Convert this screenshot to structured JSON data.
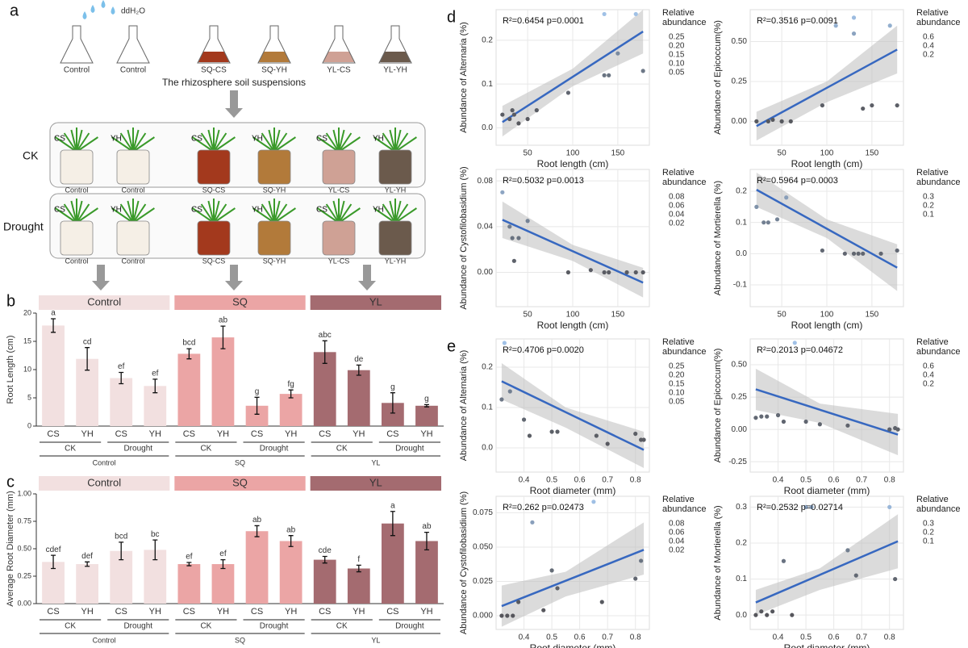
{
  "diagram": {
    "label": "a",
    "water": "ddH₂O",
    "suspension_caption": "The rhizosphere soil suspensions",
    "flasks": [
      {
        "label": "Control",
        "color": "#ffffff"
      },
      {
        "label": "Control",
        "color": "#ffffff"
      },
      {
        "label": "SQ-CS",
        "color": "#a3391d"
      },
      {
        "label": "SQ-YH",
        "color": "#b27a3a"
      },
      {
        "label": "YL-CS",
        "color": "#cfa195"
      },
      {
        "label": "YL-YH",
        "color": "#6b5a4c"
      }
    ],
    "rows": [
      "CK",
      "Drought"
    ],
    "pots": [
      {
        "variety": "CS",
        "label": "Control",
        "color": "#f5efe6"
      },
      {
        "variety": "YH",
        "label": "Control",
        "color": "#f5efe6"
      },
      {
        "variety": "CS",
        "label": "SQ-CS",
        "color": "#a3391d"
      },
      {
        "variety": "YH",
        "label": "SQ-YH",
        "color": "#b27a3a"
      },
      {
        "variety": "CS",
        "label": "YL-CS",
        "color": "#cfa195"
      },
      {
        "variety": "YH",
        "label": "YL-YH",
        "color": "#6b5a4c"
      }
    ]
  },
  "chart_data": [
    {
      "type": "bar",
      "panel": "b",
      "y_label": "Root Length (cm)",
      "ylim": [
        0,
        20
      ],
      "yticks": [
        0,
        5,
        10,
        15,
        20
      ],
      "groups": [
        {
          "name": "Control",
          "color": "#f2e0e0",
          "subgroups": [
            "CK",
            "Drought"
          ]
        },
        {
          "name": "SQ",
          "color": "#eba5a5",
          "subgroups": [
            "CK",
            "Drought"
          ]
        },
        {
          "name": "YL",
          "color": "#a46b70",
          "subgroups": [
            "CK",
            "Drought"
          ]
        }
      ],
      "categories": [
        "CS",
        "YH",
        "CS",
        "YH",
        "CS",
        "YH",
        "CS",
        "YH",
        "CS",
        "YH",
        "CS",
        "YH"
      ],
      "values": [
        17.8,
        11.9,
        8.5,
        7.1,
        12.8,
        15.7,
        3.6,
        5.7,
        13.1,
        9.9,
        4.1,
        3.6
      ],
      "errors": [
        1.2,
        2.0,
        1.0,
        1.2,
        0.9,
        2.0,
        1.5,
        0.7,
        2.0,
        0.9,
        1.8,
        0.2
      ],
      "letters": [
        "a",
        "cd",
        "ef",
        "ef",
        "bcd",
        "ab",
        "g",
        "fg",
        "abc",
        "de",
        "g",
        "g"
      ]
    },
    {
      "type": "bar",
      "panel": "c",
      "y_label": "Average Root Diameter (mm)",
      "ylim": [
        0,
        1.0
      ],
      "yticks": [
        {
          "value": 0,
          "label": "0.00"
        },
        0.25,
        {
          "value": 0.5,
          "label": "0.50"
        },
        0.75,
        {
          "value": 1.0,
          "label": "1.00"
        }
      ],
      "groups": [
        {
          "name": "Control",
          "color": "#f2e0e0",
          "subgroups": [
            "CK",
            "Drought"
          ]
        },
        {
          "name": "SQ",
          "color": "#eba5a5",
          "subgroups": [
            "CK",
            "Drought"
          ]
        },
        {
          "name": "YL",
          "color": "#a46b70",
          "subgroups": [
            "CK",
            "Drought"
          ]
        }
      ],
      "categories": [
        "CS",
        "YH",
        "CS",
        "YH",
        "CS",
        "YH",
        "CS",
        "YH",
        "CS",
        "YH",
        "CS",
        "YH"
      ],
      "values": [
        0.38,
        0.36,
        0.48,
        0.49,
        0.36,
        0.36,
        0.66,
        0.57,
        0.4,
        0.32,
        0.73,
        0.57
      ],
      "errors": [
        0.06,
        0.02,
        0.08,
        0.09,
        0.015,
        0.04,
        0.05,
        0.05,
        0.03,
        0.03,
        0.11,
        0.08
      ],
      "letters": [
        "cdef",
        "def",
        "bcd",
        "bc",
        "ef",
        "ef",
        "ab",
        "ab",
        "cde",
        "f",
        "a",
        "ab"
      ]
    },
    {
      "type": "scatter",
      "panel": "d",
      "annotation": "R²=0.6454 p=0.0001",
      "x_label": "Root length (cm)",
      "y_label": "Abundance of Alternaria (%)",
      "xlim": [
        15,
        185
      ],
      "xticks": [
        50,
        100,
        150
      ],
      "ylim": [
        -0.04,
        0.27
      ],
      "yticks": [
        {
          "value": 0,
          "label": "0.0"
        },
        0.1,
        0.2
      ],
      "x": [
        22,
        30,
        33,
        35,
        40,
        50,
        60,
        95,
        135,
        140,
        150,
        135,
        170,
        178
      ],
      "y": [
        0.03,
        0.02,
        0.04,
        0.03,
        0.01,
        0.02,
        0.04,
        0.08,
        0.12,
        0.12,
        0.17,
        0.26,
        0.26,
        0.13
      ],
      "fit": {
        "x": [
          22,
          178
        ],
        "y": [
          0.013,
          0.22
        ]
      },
      "band": {
        "x": [
          22,
          100,
          178
        ],
        "lower": [
          -0.02,
          0.095,
          0.17
        ],
        "upper": [
          0.05,
          0.135,
          0.27
        ]
      },
      "legend": {
        "title": "Relative abundance",
        "entries": [
          "0.25",
          "0.20",
          "0.15",
          "0.10",
          "0.05"
        ]
      }
    },
    {
      "type": "scatter",
      "annotation": "R²=0.3516 p=0.0091",
      "x_label": "Root length (cm)",
      "y_label": "Abundance of Epicoccum(%)",
      "xlim": [
        15,
        185
      ],
      "xticks": [
        50,
        100,
        150
      ],
      "ylim": [
        -0.15,
        0.7
      ],
      "yticks": [
        {
          "value": 0,
          "label": "0.00"
        },
        0.25,
        {
          "value": 0.5,
          "label": "0.50"
        }
      ],
      "x": [
        22,
        35,
        40,
        50,
        60,
        95,
        110,
        130,
        140,
        150,
        170,
        178,
        130
      ],
      "y": [
        0,
        0,
        0.01,
        0,
        0,
        0.1,
        0.6,
        0.65,
        0.08,
        0.1,
        0.6,
        0.1,
        0.55
      ],
      "fit": {
        "x": [
          22,
          178
        ],
        "y": [
          -0.03,
          0.45
        ]
      },
      "band": {
        "x": [
          22,
          100,
          178
        ],
        "lower": [
          -0.12,
          0.12,
          0.3
        ],
        "upper": [
          0.06,
          0.25,
          0.6
        ]
      },
      "legend": {
        "title": "Relative abundance",
        "entries": [
          "0.6",
          "0.4",
          "0.2"
        ]
      }
    },
    {
      "type": "scatter",
      "annotation": "R²=0.5032 p=0.0013",
      "x_label": "Root length (cm)",
      "y_label": "Abundance of Cystofilobasidium (%)",
      "xlim": [
        15,
        185
      ],
      "xticks": [
        50,
        100,
        150
      ],
      "ylim": [
        -0.03,
        0.09
      ],
      "yticks": [
        {
          "value": 0,
          "label": "0.00"
        },
        0.04,
        0.08
      ],
      "x": [
        22,
        30,
        33,
        35,
        40,
        50,
        95,
        120,
        135,
        140,
        160,
        170,
        178
      ],
      "y": [
        0.07,
        0.04,
        0.03,
        0.01,
        0.03,
        0.045,
        0.0,
        0.002,
        0.0,
        0.0,
        0.0,
        0.0,
        0.0
      ],
      "fit": {
        "x": [
          22,
          178
        ],
        "y": [
          0.046,
          -0.009
        ]
      },
      "band": {
        "x": [
          22,
          100,
          178
        ],
        "lower": [
          0.03,
          0.01,
          -0.022
        ],
        "upper": [
          0.062,
          0.024,
          0.004
        ]
      },
      "legend": {
        "title": "Relative abundance",
        "entries": [
          "0.08",
          "0.06",
          "0.04",
          "0.02"
        ]
      }
    },
    {
      "type": "scatter",
      "annotation": "R²=0.5964 p=0.0003",
      "x_label": "Root length (cm)",
      "y_label": "Abundance of Mortierella (%)",
      "xlim": [
        15,
        185
      ],
      "xticks": [
        50,
        100,
        150
      ],
      "ylim": [
        -0.17,
        0.27
      ],
      "yticks": [
        -0.1,
        {
          "value": 0,
          "label": "0.0"
        },
        0.1,
        0.2
      ],
      "x": [
        22,
        30,
        35,
        45,
        55,
        95,
        120,
        130,
        135,
        140,
        160,
        178
      ],
      "y": [
        0.15,
        0.1,
        0.1,
        0.11,
        0.18,
        0.01,
        0.0,
        0.0,
        0.0,
        0.0,
        0.0,
        0.01
      ],
      "fit": {
        "x": [
          22,
          178
        ],
        "y": [
          0.205,
          -0.045
        ]
      },
      "band": {
        "x": [
          22,
          100,
          178
        ],
        "lower": [
          0.15,
          0.05,
          -0.12
        ],
        "upper": [
          0.26,
          0.11,
          0.03
        ]
      },
      "legend": {
        "title": "Relative abundance",
        "entries": [
          "0.3",
          "0.2",
          "0.1"
        ]
      }
    },
    {
      "type": "scatter",
      "panel": "e",
      "annotation": "R²=0.4706 p=0.0020",
      "x_label": "Root diameter (mm)",
      "y_label": "Abundance of Alternaria (%)",
      "xlim": [
        0.3,
        0.85
      ],
      "xticks": [
        0.4,
        0.5,
        0.6,
        0.7,
        0.8
      ],
      "ylim": [
        -0.06,
        0.27
      ],
      "yticks": [
        {
          "value": 0,
          "label": "0.0"
        },
        0.1,
        0.2
      ],
      "x": [
        0.32,
        0.33,
        0.35,
        0.4,
        0.42,
        0.5,
        0.52,
        0.66,
        0.7,
        0.8,
        0.82,
        0.83
      ],
      "y": [
        0.12,
        0.26,
        0.14,
        0.07,
        0.03,
        0.04,
        0.04,
        0.03,
        0.01,
        0.035,
        0.02,
        0.02
      ],
      "fit": {
        "x": [
          0.32,
          0.83
        ],
        "y": [
          0.165,
          -0.005
        ]
      },
      "band": {
        "x": [
          0.32,
          0.55,
          0.83
        ],
        "lower": [
          0.12,
          0.05,
          -0.05
        ],
        "upper": [
          0.21,
          0.1,
          0.04
        ]
      },
      "legend": {
        "title": "Relative abundance",
        "entries": [
          "0.25",
          "0.20",
          "0.15",
          "0.10",
          "0.05"
        ]
      }
    },
    {
      "type": "scatter",
      "annotation": "R²=0.2013 p=0.04672",
      "x_label": "Root diameter (mm)",
      "y_label": "Abundance of Epicoccum(%)",
      "xlim": [
        0.3,
        0.85
      ],
      "xticks": [
        0.4,
        0.5,
        0.6,
        0.7,
        0.8
      ],
      "ylim": [
        -0.33,
        0.7
      ],
      "yticks": [
        -0.25,
        {
          "value": 0,
          "label": "0.00"
        },
        0.25,
        {
          "value": 0.5,
          "label": "0.50"
        }
      ],
      "x": [
        0.32,
        0.34,
        0.36,
        0.4,
        0.42,
        0.46,
        0.5,
        0.55,
        0.65,
        0.8,
        0.82,
        0.83
      ],
      "y": [
        0.09,
        0.1,
        0.1,
        0.11,
        0.06,
        0.67,
        0.06,
        0.04,
        0.03,
        0.0,
        0.01,
        0.0
      ],
      "fit": {
        "x": [
          0.32,
          0.83
        ],
        "y": [
          0.31,
          -0.04
        ]
      },
      "band": {
        "x": [
          0.32,
          0.55,
          0.83
        ],
        "lower": [
          0.15,
          0.05,
          -0.2
        ],
        "upper": [
          0.47,
          0.2,
          0.12
        ]
      },
      "legend": {
        "title": "Relative abundance",
        "entries": [
          "0.6",
          "0.4",
          "0.2"
        ]
      }
    },
    {
      "type": "scatter",
      "annotation": "R²=0.262 p=0.02473",
      "x_label": "Root diameter (mm)",
      "y_label": "Abundance of Cystofilobasidium (%)",
      "xlim": [
        0.3,
        0.85
      ],
      "xticks": [
        0.4,
        0.5,
        0.6,
        0.7,
        0.8
      ],
      "ylim": [
        -0.01,
        0.087
      ],
      "yticks": [
        {
          "value": 0,
          "label": "0.000"
        },
        0.025,
        {
          "value": 0.05,
          "label": "0.050"
        },
        0.075
      ],
      "x": [
        0.32,
        0.34,
        0.36,
        0.38,
        0.43,
        0.47,
        0.5,
        0.52,
        0.65,
        0.68,
        0.8,
        0.82
      ],
      "y": [
        0.0,
        0.0,
        0.0,
        0.01,
        0.068,
        0.004,
        0.033,
        0.02,
        0.083,
        0.01,
        0.027,
        0.04
      ],
      "fit": {
        "x": [
          0.32,
          0.83
        ],
        "y": [
          0.007,
          0.048
        ]
      },
      "band": {
        "x": [
          0.32,
          0.55,
          0.83
        ],
        "lower": [
          -0.008,
          0.014,
          0.03
        ],
        "upper": [
          0.022,
          0.032,
          0.068
        ]
      },
      "legend": {
        "title": "Relative abundance",
        "entries": [
          "0.08",
          "0.06",
          "0.04",
          "0.02"
        ]
      }
    },
    {
      "type": "scatter",
      "annotation": "R²=0.2532 p=0.02714",
      "x_label": "Root diameter (mm)",
      "y_label": "Abundance of Mortierella (%)",
      "xlim": [
        0.3,
        0.85
      ],
      "xticks": [
        0.4,
        0.5,
        0.6,
        0.7,
        0.8
      ],
      "ylim": [
        -0.04,
        0.33
      ],
      "yticks": [
        {
          "value": 0,
          "label": "0.0"
        },
        0.1,
        0.2,
        0.3
      ],
      "x": [
        0.32,
        0.34,
        0.36,
        0.38,
        0.42,
        0.45,
        0.5,
        0.52,
        0.65,
        0.68,
        0.8,
        0.82
      ],
      "y": [
        0.0,
        0.01,
        0.0,
        0.01,
        0.15,
        0.0,
        0.3,
        0.3,
        0.18,
        0.11,
        0.3,
        0.1
      ],
      "fit": {
        "x": [
          0.32,
          0.83
        ],
        "y": [
          0.035,
          0.205
        ]
      },
      "band": {
        "x": [
          0.32,
          0.55,
          0.83
        ],
        "lower": [
          0.0,
          0.07,
          0.13
        ],
        "upper": [
          0.07,
          0.13,
          0.28
        ]
      },
      "legend": {
        "title": "Relative abundance",
        "entries": [
          "0.3",
          "0.2",
          "0.1"
        ]
      }
    }
  ]
}
